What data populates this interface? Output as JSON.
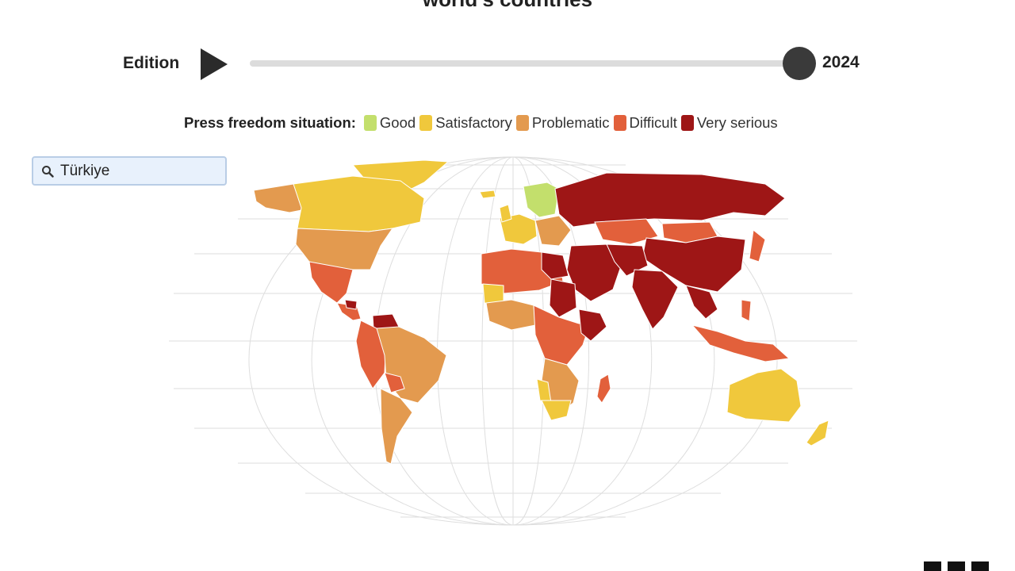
{
  "header": {
    "title": "world's countries"
  },
  "edition": {
    "label": "Edition",
    "year": "2024",
    "play_icon": "play-icon",
    "progress": 1.0
  },
  "legend": {
    "title": "Press freedom situation:",
    "items": [
      {
        "label": "Good",
        "color": "#c3df6c"
      },
      {
        "label": "Satisfactory",
        "color": "#f0c83c"
      },
      {
        "label": "Problematic",
        "color": "#e39a4f"
      },
      {
        "label": "Difficult",
        "color": "#e2603b"
      },
      {
        "label": "Very serious",
        "color": "#9e1616"
      }
    ]
  },
  "search": {
    "value": "Türkiye",
    "icon": "search-icon"
  },
  "map": {
    "projection": "robinson",
    "ocean_color": "#ffffff",
    "graticule_color": "#dedede"
  },
  "logo": {
    "icon": "rsf-logo"
  }
}
